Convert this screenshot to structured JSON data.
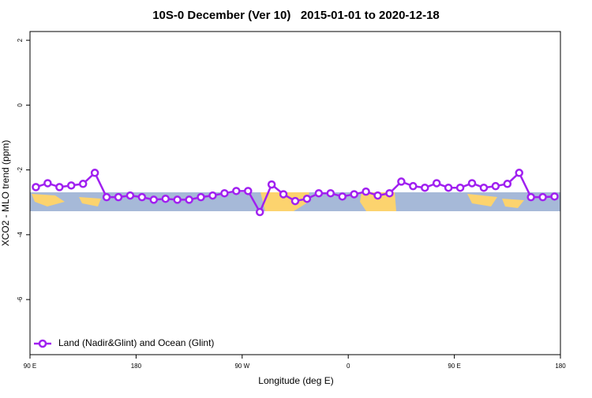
{
  "chart_data": {
    "type": "line",
    "title": "10S-0 December (Ver 10)   2015-01-01 to 2020-12-18",
    "x_label": "Longitude (deg E)",
    "y_label": "XCO2 - MLO trend (ppm)",
    "x": [
      95,
      105,
      115,
      125,
      135,
      145,
      155,
      165,
      175,
      185,
      195,
      205,
      215,
      225,
      235,
      245,
      255,
      265,
      275,
      285,
      295,
      305,
      315,
      325,
      335,
      345,
      355,
      365,
      375,
      385,
      395,
      405,
      415,
      425,
      435,
      445,
      455,
      465,
      475,
      485,
      495,
      505,
      515,
      525,
      535
    ],
    "series": [
      {
        "name": "Land (Nadir&Glint) and Ocean (Glint)",
        "color": "#a020f0",
        "values": [
          -2.53,
          -2.41,
          -2.53,
          -2.48,
          -2.43,
          -2.09,
          -2.84,
          -2.84,
          -2.79,
          -2.84,
          -2.92,
          -2.89,
          -2.92,
          -2.92,
          -2.84,
          -2.79,
          -2.72,
          -2.65,
          -2.65,
          -3.3,
          -2.45,
          -2.75,
          -2.96,
          -2.89,
          -2.72,
          -2.72,
          -2.82,
          -2.75,
          -2.67,
          -2.79,
          -2.72,
          -2.36,
          -2.5,
          -2.55,
          -2.41,
          -2.55,
          -2.55,
          -2.41,
          -2.55,
          -2.5,
          -2.43,
          -2.09,
          -2.84,
          -2.84,
          -2.82
        ]
      }
    ],
    "xlim": [
      90,
      540
    ],
    "xticks": [
      {
        "value": 90,
        "label": "90 E"
      },
      180,
      {
        "value": 270,
        "label": "90 W"
      },
      {
        "value": 360,
        "label": "0"
      },
      {
        "value": 450,
        "label": "90 E"
      },
      {
        "value": 540,
        "label": "180"
      }
    ],
    "ylim": [
      -7.7,
      2.27
    ],
    "yticks": [
      2,
      0,
      -2,
      -4,
      -6
    ],
    "legend": "bottom-left"
  }
}
